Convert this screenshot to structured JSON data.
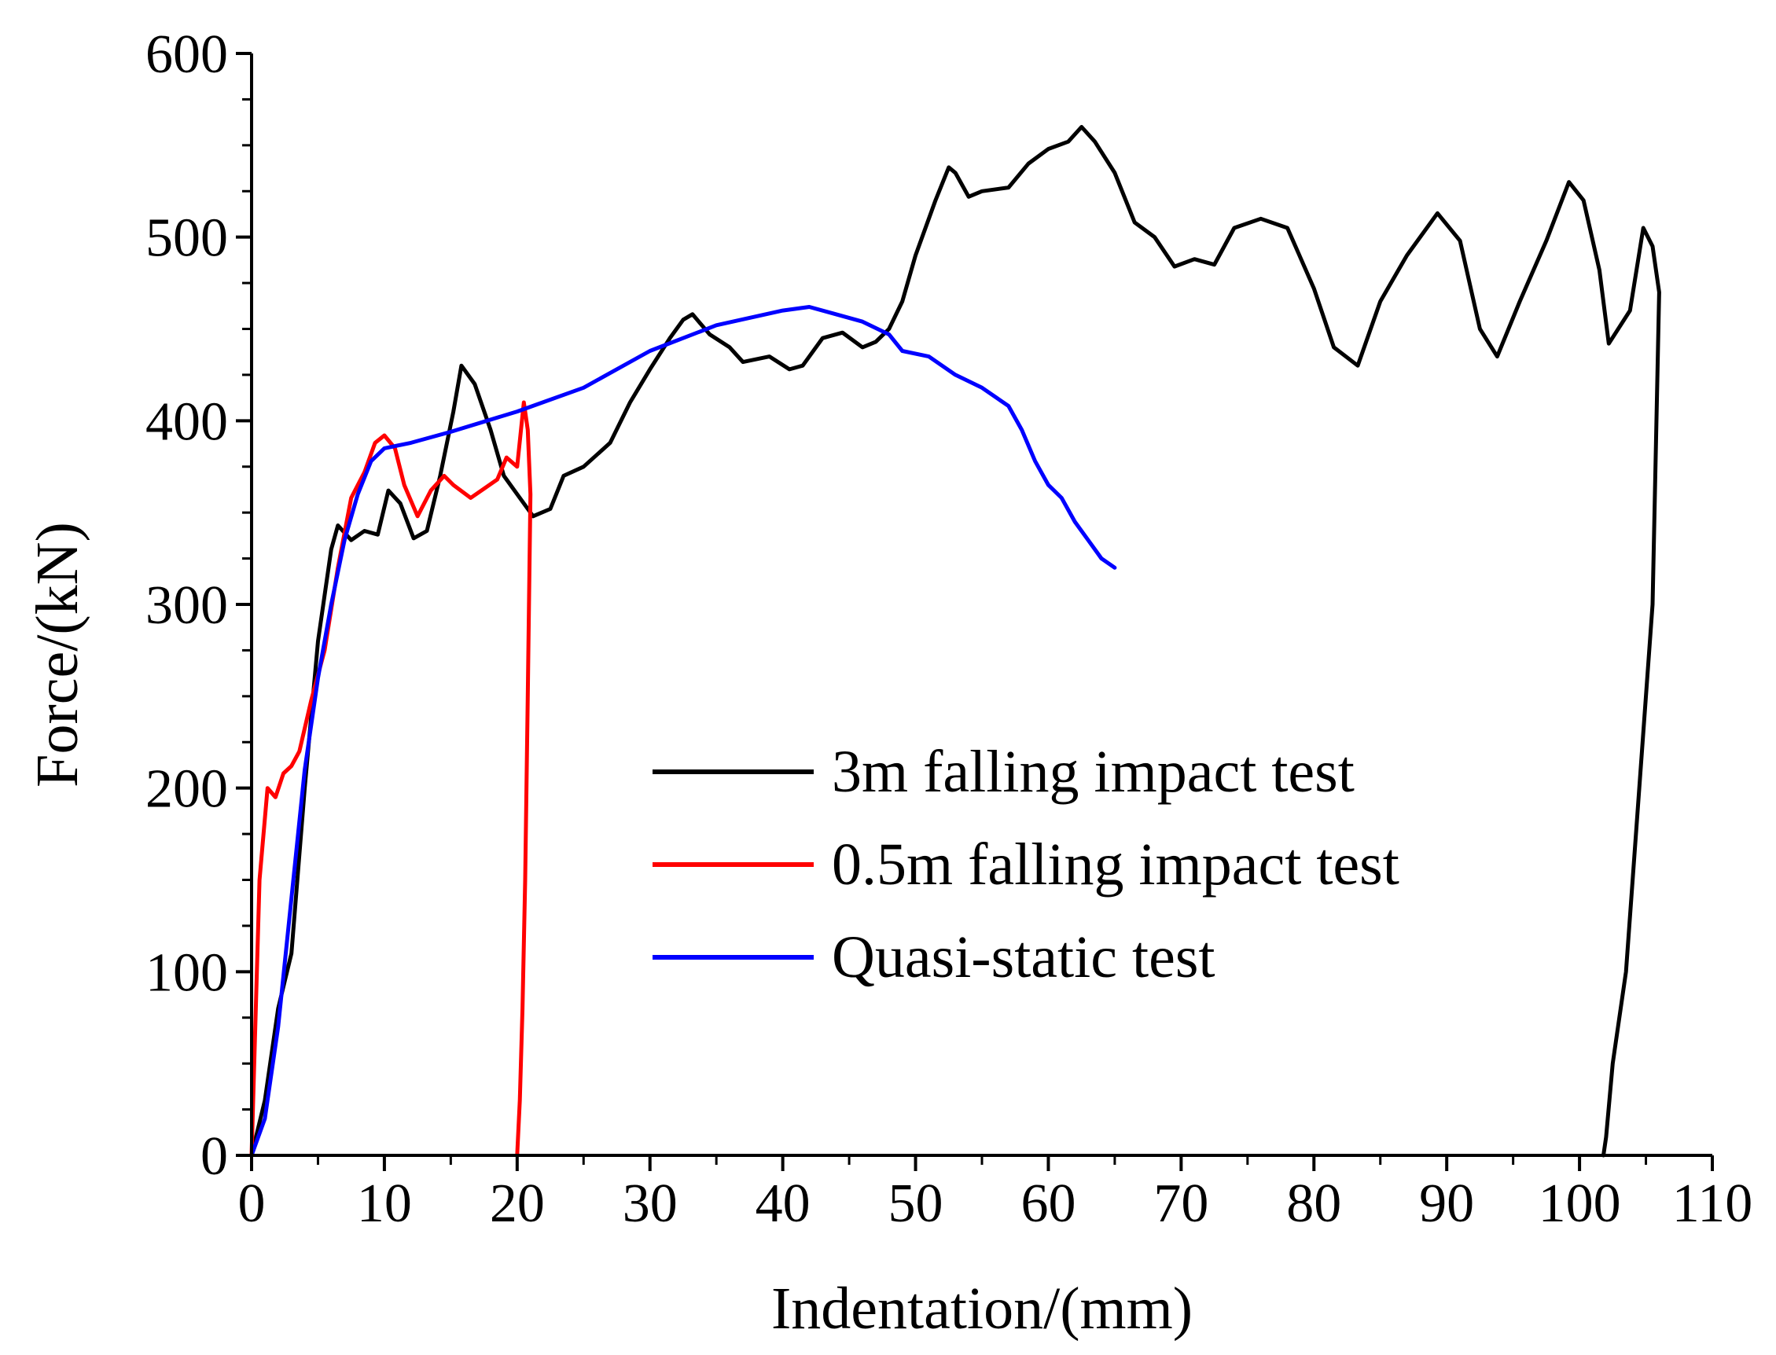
{
  "chart_data": {
    "type": "line",
    "title": "",
    "xlabel": "Indentation/(mm)",
    "ylabel": "Force/(kN)",
    "xlim": [
      0,
      110
    ],
    "ylim": [
      0,
      600
    ],
    "xticks": [
      0,
      10,
      20,
      30,
      40,
      50,
      60,
      70,
      80,
      90,
      100,
      110
    ],
    "yticks": [
      0,
      100,
      200,
      300,
      400,
      500,
      600
    ],
    "xtick_labels": [
      "0",
      "10",
      "20",
      "30",
      "40",
      "50",
      "60",
      "70",
      "80",
      "90",
      "100",
      "110"
    ],
    "ytick_labels": [
      "0",
      "100",
      "200",
      "300",
      "400",
      "500",
      "600"
    ],
    "grid": false,
    "legend_position": "center-right",
    "series": [
      {
        "name": "3m falling impact test",
        "color": "#000000",
        "x": [
          0,
          1,
          2,
          3,
          4,
          5,
          6,
          6.5,
          7.5,
          8.5,
          9.5,
          10.3,
          11.2,
          12.2,
          13.2,
          14.2,
          15.2,
          15.8,
          16.8,
          18,
          19,
          20,
          21.2,
          22.5,
          23.5,
          25,
          27,
          28.5,
          30,
          31.5,
          32.5,
          33.2,
          34.5,
          36,
          37,
          39,
          40.5,
          41.5,
          43,
          44.5,
          46,
          47,
          48,
          49,
          50,
          51.5,
          52.5,
          53,
          54,
          55,
          57,
          58.5,
          60,
          61.5,
          62.5,
          63.5,
          65,
          66.5,
          68,
          69.5,
          71,
          72.5,
          74,
          76,
          78,
          80,
          81.5,
          83.3,
          85,
          87,
          89.3,
          91,
          92.5,
          93.8,
          95.5,
          97.5,
          99.2,
          100.3,
          101.5,
          102.2,
          103.8,
          104.8,
          105.5,
          106,
          105.5,
          104.5,
          103.5,
          102.5,
          102,
          101.8
        ],
        "y": [
          0,
          30,
          80,
          110,
          200,
          280,
          330,
          343,
          335,
          340,
          338,
          362,
          355,
          336,
          340,
          370,
          405,
          430,
          420,
          395,
          370,
          360,
          348,
          352,
          370,
          375,
          388,
          410,
          428,
          445,
          455,
          458,
          447,
          440,
          432,
          435,
          428,
          430,
          445,
          448,
          440,
          443,
          450,
          465,
          490,
          520,
          538,
          535,
          522,
          525,
          527,
          540,
          548,
          552,
          560,
          552,
          535,
          508,
          500,
          484,
          488,
          485,
          505,
          510,
          505,
          472,
          440,
          430,
          465,
          490,
          513,
          498,
          450,
          435,
          465,
          498,
          530,
          520,
          482,
          442,
          460,
          505,
          495,
          470,
          300,
          200,
          100,
          50,
          10,
          0
        ]
      },
      {
        "name": "0.5m falling impact test",
        "color": "#ff0000",
        "x": [
          0,
          0.6,
          1.2,
          1.8,
          2.4,
          3,
          3.6,
          4.5,
          5.5,
          6.5,
          7.5,
          8.5,
          9.3,
          10,
          10.8,
          11.5,
          12.5,
          13.5,
          14.5,
          15.2,
          16.5,
          17.5,
          18.5,
          19.2,
          20,
          20.5,
          20.8,
          21,
          20.8,
          20.6,
          20.4,
          20.2,
          20
        ],
        "y": [
          0,
          150,
          200,
          195,
          208,
          212,
          220,
          248,
          275,
          320,
          358,
          372,
          388,
          392,
          385,
          365,
          348,
          362,
          370,
          365,
          358,
          363,
          368,
          380,
          375,
          410,
          395,
          360,
          250,
          150,
          80,
          30,
          0
        ]
      },
      {
        "name": "Quasi-static test",
        "color": "#0000ff",
        "x": [
          0,
          1,
          2,
          3,
          4,
          5,
          6,
          7,
          8,
          9,
          10,
          12,
          15,
          20,
          25,
          30,
          35,
          40,
          42,
          44,
          46,
          48,
          49,
          51,
          53,
          55,
          57,
          58,
          59,
          60,
          61,
          62,
          63,
          64,
          65
        ],
        "y": [
          0,
          20,
          70,
          140,
          210,
          260,
          300,
          335,
          360,
          378,
          385,
          388,
          394,
          405,
          418,
          438,
          452,
          460,
          462,
          458,
          454,
          447,
          438,
          435,
          425,
          418,
          408,
          395,
          378,
          365,
          358,
          345,
          335,
          325,
          320
        ]
      }
    ]
  }
}
